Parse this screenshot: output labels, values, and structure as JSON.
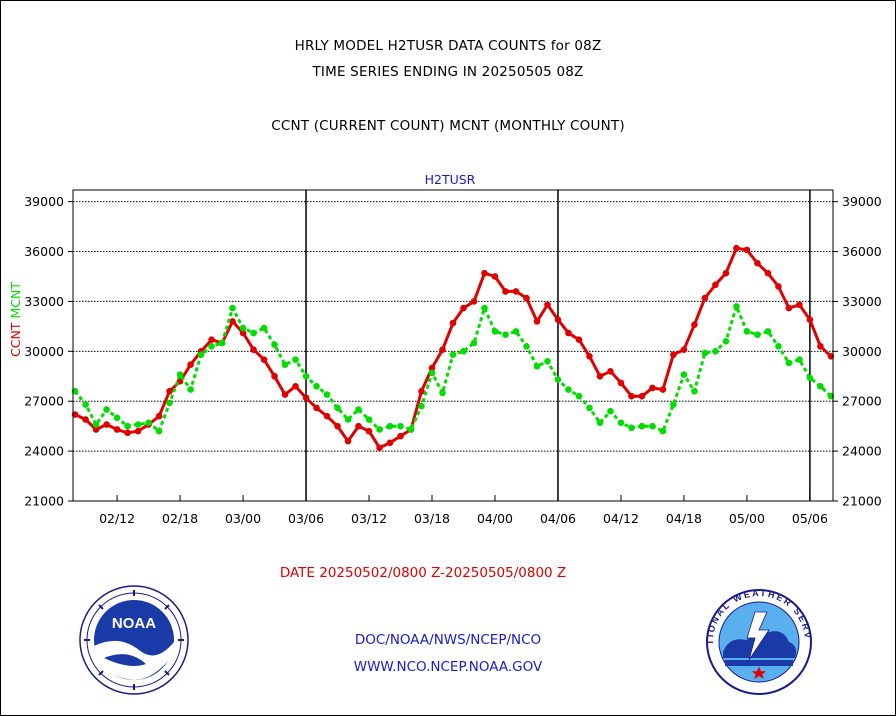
{
  "header": {
    "line1": "HRLY MODEL H2TUSR DATA COUNTS for 08Z",
    "line2": "TIME SERIES ENDING IN 20250505 08Z",
    "line3": "CCNT (CURRENT COUNT) MCNT (MONTHLY COUNT)"
  },
  "footer": {
    "date_range": "DATE 20250502/0800 Z-20250505/0800 Z",
    "org_path": "DOC/NOAA/NWS/NCEP/NCO",
    "url": "WWW.NCO.NCEP.NOAA.GOV",
    "noaa_logo_text": "NOAA",
    "nws_logo_text": "NATIONAL WEATHER SERVICE"
  },
  "chart_data": {
    "type": "line",
    "title": "H2TUSR",
    "ylabel_parts": [
      {
        "text": "CCNT",
        "color": "#e00000"
      },
      {
        "text": "MCNT",
        "color": "#00dd00"
      }
    ],
    "ylim": [
      21000,
      39700
    ],
    "yticks": [
      21000,
      24000,
      27000,
      30000,
      33000,
      36000,
      39000
    ],
    "ytick_labels": [
      "21000",
      "24000",
      "27000",
      "30000",
      "33000",
      "36000",
      "39000"
    ],
    "xticks": [
      "02/12",
      "02/18",
      "03/00",
      "03/06",
      "03/12",
      "03/18",
      "04/00",
      "04/06",
      "04/12",
      "04/18",
      "05/00",
      "05/06"
    ],
    "xtick_hours": [
      4,
      10,
      16,
      22,
      28,
      34,
      40,
      46,
      52,
      58,
      64,
      70
    ],
    "xlim": [
      -0.2,
      72.2
    ],
    "day_dividers": [
      22,
      46,
      70
    ],
    "grid": true,
    "series": [
      {
        "name": "CCNT",
        "color": "#e00000",
        "x": [
          0,
          1,
          2,
          3,
          4,
          5,
          6,
          7,
          8,
          9,
          10,
          11,
          12,
          13,
          14,
          15,
          16,
          17,
          18,
          19,
          20,
          21,
          22,
          23,
          24,
          25,
          26,
          27,
          28,
          29,
          30,
          31,
          32,
          33,
          34,
          35,
          36,
          37,
          38,
          39,
          40,
          41,
          42,
          43,
          44,
          45,
          46,
          47,
          48,
          49,
          50,
          51,
          52,
          53,
          54,
          55,
          56,
          57,
          58,
          59,
          60,
          61,
          62,
          63,
          64,
          65,
          66,
          67,
          68,
          69,
          70,
          71,
          72
        ],
        "values": [
          26200,
          25900,
          25300,
          25600,
          25300,
          25100,
          25200,
          25600,
          26100,
          27600,
          28200,
          29200,
          30000,
          30700,
          30500,
          31800,
          31100,
          30100,
          29500,
          28500,
          27400,
          27900,
          27200,
          26600,
          26100,
          25500,
          24600,
          25500,
          25200,
          24200,
          24500,
          24900,
          25300,
          27600,
          29000,
          30100,
          31700,
          32600,
          33000,
          34700,
          34500,
          33600,
          33600,
          33200,
          31800,
          32800,
          31900,
          31100,
          30700,
          29700,
          28500,
          28800,
          28100,
          27300,
          27300,
          27800,
          27700,
          29800,
          30100,
          31600,
          33200,
          34000,
          34700,
          36200,
          36100,
          35300,
          34700,
          33900,
          32600,
          32800,
          31900,
          30300,
          29700
        ]
      },
      {
        "name": "MCNT",
        "color": "#00dd00",
        "x": [
          0,
          1,
          2,
          3,
          4,
          5,
          6,
          7,
          8,
          9,
          10,
          11,
          12,
          13,
          14,
          15,
          16,
          17,
          18,
          19,
          20,
          21,
          22,
          23,
          24,
          25,
          26,
          27,
          28,
          29,
          30,
          31,
          32,
          33,
          34,
          35,
          36,
          37,
          38,
          39,
          40,
          41,
          42,
          43,
          44,
          45,
          46,
          47,
          48,
          49,
          50,
          51,
          52,
          53,
          54,
          55,
          56,
          57,
          58,
          59,
          60,
          61,
          62,
          63,
          64,
          65,
          66,
          67,
          68,
          69,
          70,
          71,
          72
        ],
        "values": [
          27600,
          26800,
          25600,
          26500,
          26000,
          25500,
          25600,
          25700,
          25200,
          26900,
          28600,
          27700,
          29800,
          30300,
          30500,
          32600,
          31400,
          31100,
          31400,
          30400,
          29200,
          29500,
          28500,
          27900,
          27400,
          26600,
          25900,
          26500,
          25900,
          25300,
          25500,
          25500,
          25300,
          26700,
          28700,
          27500,
          29800,
          30000,
          30500,
          32600,
          31200,
          31000,
          31200,
          30300,
          29100,
          29400,
          28300,
          27700,
          27300,
          26600,
          25700,
          26400,
          25700,
          25400,
          25500,
          25500,
          25200,
          26800,
          28600,
          27600,
          29900,
          30000,
          30600,
          32700,
          31200,
          31000,
          31200,
          30300,
          29300,
          29500,
          28400,
          27900,
          27300
        ]
      }
    ]
  }
}
